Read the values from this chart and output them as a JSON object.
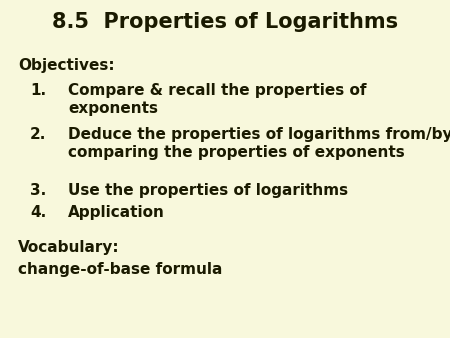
{
  "title": "8.5  Properties of Logarithms",
  "background_color": "#f8f8dc",
  "text_color": "#1a1a00",
  "objectives_label": "Objectives:",
  "item_numbers": [
    "1.",
    "2.",
    "3.",
    "4."
  ],
  "item_line1": [
    "Compare & recall the properties of",
    "Deduce the properties of logarithms from/by",
    "Use the properties of logarithms",
    "Application"
  ],
  "item_line2": [
    "exponents",
    "comparing the properties of exponents",
    "",
    ""
  ],
  "vocabulary_label": "Vocabulary:",
  "vocabulary_item": "change-of-base formula",
  "title_fontsize": 15,
  "body_fontsize": 11,
  "figsize": [
    4.5,
    3.38
  ],
  "dpi": 100
}
